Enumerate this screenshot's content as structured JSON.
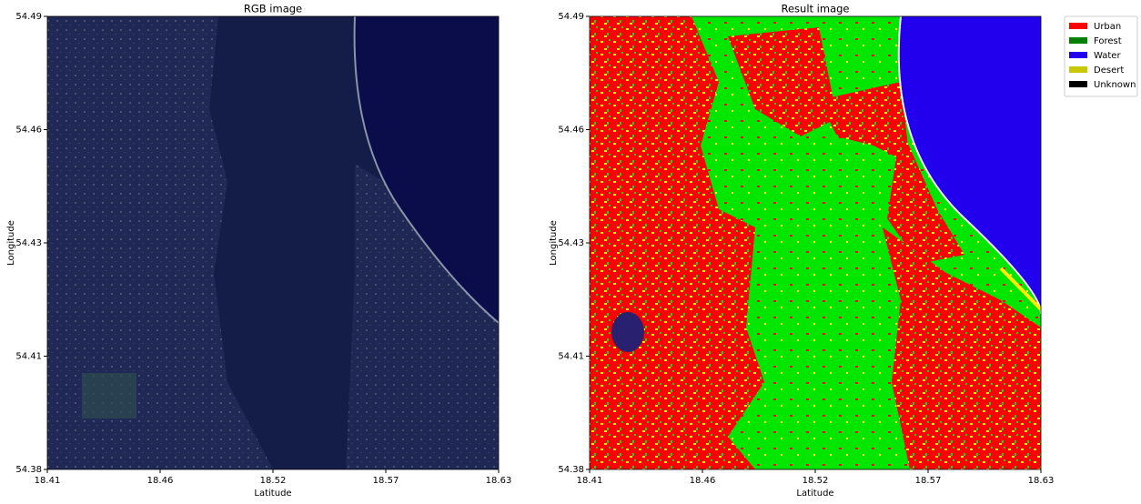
{
  "chart_data": [
    {
      "type": "image",
      "title": "RGB image",
      "xlabel": "Latitude",
      "ylabel": "Longitude",
      "xlim": [
        18.41,
        18.63
      ],
      "xticks": [
        18.41,
        {
          "value": 18.465,
          "label": "18.46"
        },
        18.52,
        {
          "value": 18.575,
          "label": "18.57"
        },
        18.63
      ],
      "ylim": [
        54.38,
        54.49
      ],
      "yticks": [
        54.38,
        {
          "value": 54.4075,
          "label": "54.41"
        },
        {
          "value": 54.435,
          "label": "54.43"
        },
        {
          "value": 54.4625,
          "label": "54.46"
        },
        54.49
      ]
    },
    {
      "type": "image",
      "title": "Result image",
      "xlabel": "Latitude",
      "ylabel": "Longitude",
      "xlim": [
        18.41,
        18.63
      ],
      "xticks": [
        18.41,
        {
          "value": 18.465,
          "label": "18.46"
        },
        18.52,
        {
          "value": 18.575,
          "label": "18.57"
        },
        18.63
      ],
      "ylim": [
        54.38,
        54.49
      ],
      "yticks": [
        54.38,
        {
          "value": 54.4075,
          "label": "54.41"
        },
        {
          "value": 54.435,
          "label": "54.43"
        },
        {
          "value": 54.4625,
          "label": "54.46"
        },
        54.49
      ],
      "legend": "outside upper right",
      "series": [
        {
          "name": "Urban",
          "color": "#ff0000"
        },
        {
          "name": "Forest",
          "color": "#008000"
        },
        {
          "name": "Water",
          "color": "#2200ee"
        },
        {
          "name": "Desert",
          "color": "#c8c800"
        },
        {
          "name": "Unknown",
          "color": "#000000"
        }
      ]
    }
  ]
}
